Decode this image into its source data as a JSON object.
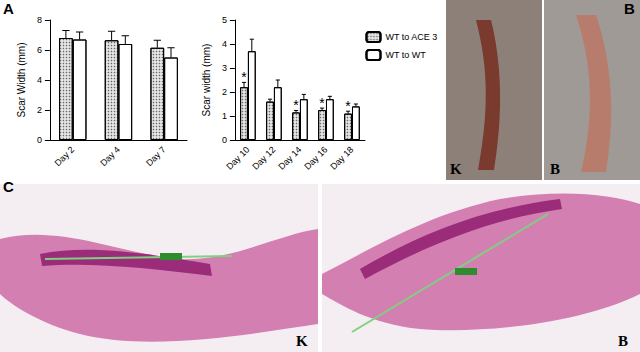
{
  "chart_data": [
    {
      "type": "bar",
      "ylabel": "Scar Width (mm)",
      "categories": [
        "Day 2",
        "Day 4",
        "Day 7"
      ],
      "series": [
        {
          "color": "#e6e6e6",
          "values": [
            6.8,
            6.65,
            6.15
          ],
          "errors": [
            0.5,
            0.6,
            0.5
          ]
        },
        {
          "color": "#ffffff",
          "values": [
            6.7,
            6.4,
            5.5
          ],
          "errors": [
            0.5,
            0.55,
            0.65
          ]
        }
      ],
      "ylim": [
        0,
        8
      ],
      "yticks": [
        0,
        2,
        4,
        6,
        8
      ],
      "grid": false
    },
    {
      "type": "bar",
      "ylabel": "Scar width (mm)",
      "categories": [
        "Day 10",
        "Day 12",
        "Day 14",
        "Day 16",
        "Day 18"
      ],
      "series": [
        {
          "name": "WT to ACE 3",
          "color": "#e6e6e6",
          "values": [
            2.2,
            1.6,
            1.15,
            1.25,
            1.1
          ],
          "errors": [
            0.2,
            0.1,
            0.08,
            0.08,
            0.1
          ]
        },
        {
          "name": "WT to WT",
          "color": "#ffffff",
          "values": [
            3.7,
            2.2,
            1.7,
            1.7,
            1.4
          ],
          "errors": [
            0.5,
            0.3,
            0.2,
            0.12,
            0.1
          ]
        }
      ],
      "annotations": [
        {
          "category": "Day 10",
          "series": "WT to ACE 3",
          "text": "*"
        },
        {
          "category": "Day 14",
          "series": "WT to ACE 3",
          "text": "*"
        },
        {
          "category": "Day 16",
          "series": "WT to ACE 3",
          "text": "*"
        },
        {
          "category": "Day 18",
          "series": "WT to ACE 3",
          "text": "*"
        }
      ],
      "ylim": [
        0,
        5
      ],
      "yticks": [
        0,
        1,
        2,
        3,
        4,
        5
      ],
      "grid": false,
      "legend": "upper right"
    }
  ],
  "panel_labels": [
    "A",
    "B",
    "C"
  ],
  "photo_labels": [
    "K",
    "B"
  ],
  "histology_labels": [
    "K",
    "B"
  ]
}
